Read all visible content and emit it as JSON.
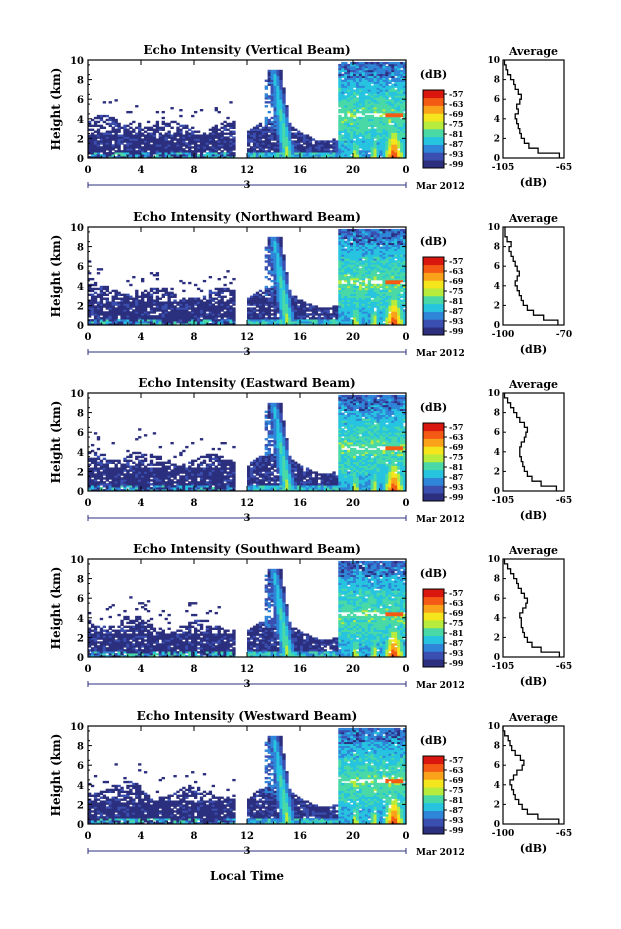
{
  "figure": {
    "x_axis_label": "Local Time",
    "x_ticks": [
      "0",
      "4",
      "8",
      "12",
      "16",
      "20",
      "0"
    ],
    "day_label": "3",
    "month_label": "Mar 2012",
    "y_axis_label": "Height (km)",
    "y_ticks": [
      "0",
      "2",
      "4",
      "6",
      "8",
      "10"
    ],
    "colorbar_unit": "(dB)",
    "colorbar_ticks": [
      "-57",
      "-63",
      "-69",
      "-75",
      "-81",
      "-87",
      "-93",
      "-99"
    ],
    "avg_title": "Average",
    "avg_xlabel": "(dB)",
    "colors": [
      "#2b2f7e",
      "#3a4fb0",
      "#2f86d8",
      "#27c4e0",
      "#49d9a6",
      "#b8ec3c",
      "#f5e51c",
      "#f9a21a",
      "#f45a13",
      "#d9170f"
    ]
  },
  "chart_data": [
    {
      "type": "heatmap",
      "title": "Echo Intensity (Vertical Beam)",
      "avg_xticks": [
        "-105",
        "-65"
      ],
      "avg_xlim": [
        -105,
        -65
      ],
      "avg_profile": {
        "height_km": [
          0,
          0.5,
          1,
          1.5,
          2,
          2.5,
          3,
          3.5,
          4,
          4.5,
          5,
          5.5,
          6,
          6.5,
          7,
          7.5,
          8,
          8.5,
          9,
          9.5
        ],
        "db": [
          -68,
          -82,
          -88,
          -91,
          -93,
          -94,
          -95,
          -96,
          -97,
          -95,
          -96,
          -94,
          -93,
          -95,
          -97,
          -98,
          -100,
          -102,
          -103,
          -104
        ]
      }
    },
    {
      "type": "heatmap",
      "title": "Echo Intensity (Northward Beam)",
      "avg_xticks": [
        "-100",
        "-70"
      ],
      "avg_xlim": [
        -100,
        -70
      ],
      "avg_profile": {
        "height_km": [
          0,
          0.5,
          1,
          1.5,
          2,
          2.5,
          3,
          3.5,
          4,
          4.5,
          5,
          5.5,
          6,
          6.5,
          7,
          7.5,
          8,
          8.5,
          9,
          9.5
        ],
        "db": [
          -73,
          -80,
          -85,
          -88,
          -90,
          -91,
          -92,
          -93,
          -94,
          -93,
          -92,
          -93,
          -94,
          -95,
          -96,
          -97,
          -96,
          -98,
          -99,
          -99
        ]
      }
    },
    {
      "type": "heatmap",
      "title": "Echo Intensity (Eastward Beam)",
      "avg_xticks": [
        "-105",
        "-65"
      ],
      "avg_xlim": [
        -105,
        -65
      ],
      "avg_profile": {
        "height_km": [
          0,
          0.5,
          1,
          1.5,
          2,
          2.5,
          3,
          3.5,
          4,
          4.5,
          5,
          5.5,
          6,
          6.5,
          7,
          7.5,
          8,
          8.5,
          9,
          9.5
        ],
        "db": [
          -70,
          -80,
          -86,
          -89,
          -91,
          -92,
          -93,
          -94,
          -94,
          -93,
          -91,
          -90,
          -89,
          -91,
          -94,
          -96,
          -98,
          -100,
          -102,
          -104
        ]
      }
    },
    {
      "type": "heatmap",
      "title": "Echo Intensity (Southward Beam)",
      "avg_xticks": [
        "-105",
        "-65"
      ],
      "avg_xlim": [
        -105,
        -65
      ],
      "avg_profile": {
        "height_km": [
          0,
          0.5,
          1,
          1.5,
          2,
          2.5,
          3,
          3.5,
          4,
          4.5,
          5,
          5.5,
          6,
          6.5,
          7,
          7.5,
          8,
          8.5,
          9,
          9.5
        ],
        "db": [
          -68,
          -80,
          -86,
          -89,
          -91,
          -92,
          -93,
          -93,
          -94,
          -92,
          -90,
          -89,
          -91,
          -93,
          -95,
          -96,
          -98,
          -100,
          -102,
          -104
        ]
      }
    },
    {
      "type": "heatmap",
      "title": "Echo Intensity (Westward Beam)",
      "avg_xticks": [
        "-100",
        "-65"
      ],
      "avg_xlim": [
        -100,
        -65
      ],
      "avg_profile": {
        "height_km": [
          0,
          0.5,
          1,
          1.5,
          2,
          2.5,
          3,
          3.5,
          4,
          4.5,
          5,
          5.5,
          6,
          6.5,
          7,
          7.5,
          8,
          8.5,
          9,
          9.5
        ],
        "db": [
          -68,
          -80,
          -86,
          -89,
          -91,
          -93,
          -94,
          -95,
          -96,
          -94,
          -92,
          -89,
          -88,
          -90,
          -93,
          -95,
          -96,
          -97,
          -99,
          -100
        ]
      }
    }
  ]
}
